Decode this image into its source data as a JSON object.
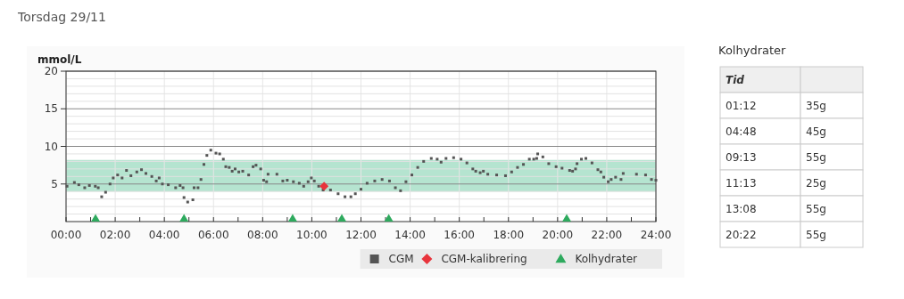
{
  "chart_data": [
    {
      "type": "scatter",
      "title": "Torsdag 29/11",
      "ylabel": "mmol/L",
      "xlim": [
        0,
        24
      ],
      "xticks": [
        {
          "value": 0,
          "label": "00:00"
        },
        {
          "value": 1,
          "label": null
        },
        {
          "value": 2,
          "label": "02:00"
        },
        {
          "value": 3,
          "label": null
        },
        {
          "value": 4,
          "label": "04:00"
        },
        {
          "value": 5,
          "label": null
        },
        {
          "value": 6,
          "label": "06:00"
        },
        {
          "value": 7,
          "label": null
        },
        {
          "value": 8,
          "label": "08:00"
        },
        {
          "value": 9,
          "label": null
        },
        {
          "value": 10,
          "label": "10:00"
        },
        {
          "value": 11,
          "label": null
        },
        {
          "value": 12,
          "label": "12:00"
        },
        {
          "value": 13,
          "label": null
        },
        {
          "value": 14,
          "label": "14:00"
        },
        {
          "value": 15,
          "label": null
        },
        {
          "value": 16,
          "label": "16:00"
        },
        {
          "value": 17,
          "label": null
        },
        {
          "value": 18,
          "label": "18:00"
        },
        {
          "value": 19,
          "label": null
        },
        {
          "value": 20,
          "label": "20:00"
        },
        {
          "value": 21,
          "label": null
        },
        {
          "value": 22,
          "label": "22:00"
        },
        {
          "value": 23,
          "label": null
        },
        {
          "value": 24,
          "label": "24:00"
        }
      ],
      "ylim": [
        0,
        20
      ],
      "yticks": [
        {
          "value": 1,
          "label": null
        },
        {
          "value": 2,
          "label": null
        },
        {
          "value": 3,
          "label": null
        },
        {
          "value": 4,
          "label": null
        },
        5,
        {
          "value": 6,
          "label": null
        },
        {
          "value": 7,
          "label": null
        },
        {
          "value": 8,
          "label": null
        },
        {
          "value": 9,
          "label": null
        },
        10,
        {
          "value": 11,
          "label": null
        },
        {
          "value": 12,
          "label": null
        },
        {
          "value": 13,
          "label": null
        },
        {
          "value": 14,
          "label": null
        },
        15,
        {
          "value": 16,
          "label": null
        },
        {
          "value": 17,
          "label": null
        },
        {
          "value": 18,
          "label": null
        },
        {
          "value": 19,
          "label": null
        },
        20
      ],
      "grid": true,
      "legend": "bottom right",
      "bands": [
        {
          "axis": "y",
          "from": 4,
          "to": 8.2,
          "color": "#b5e4d0"
        }
      ],
      "series": [
        {
          "name": "CGM",
          "color": "#555555",
          "marker": "square",
          "x": [
            0.04,
            0.34,
            0.52,
            0.76,
            0.95,
            1.19,
            1.31,
            1.45,
            1.61,
            1.79,
            1.92,
            2.1,
            2.28,
            2.46,
            2.64,
            2.88,
            3.07,
            3.25,
            3.49,
            3.67,
            3.79,
            3.92,
            4.16,
            4.46,
            4.64,
            4.76,
            4.8,
            4.95,
            5.16,
            5.21,
            5.37,
            5.49,
            5.61,
            5.73,
            5.89,
            6.1,
            6.25,
            6.4,
            6.5,
            6.64,
            6.76,
            6.88,
            7.03,
            7.19,
            7.43,
            7.61,
            7.73,
            7.92,
            8.04,
            8.16,
            8.22,
            8.58,
            8.82,
            9.0,
            9.25,
            9.49,
            9.67,
            9.85,
            9.98,
            10.1,
            10.28,
            10.46,
            10.76,
            11.07,
            11.35,
            11.59,
            11.77,
            12.0,
            12.25,
            12.56,
            12.86,
            13.16,
            13.4,
            13.61,
            13.83,
            14.07,
            14.31,
            14.55,
            14.86,
            15.1,
            15.26,
            15.46,
            15.77,
            16.07,
            16.31,
            16.55,
            16.67,
            16.85,
            16.98,
            17.16,
            17.52,
            17.88,
            18.13,
            18.37,
            18.61,
            18.85,
            19.03,
            19.15,
            19.19,
            19.4,
            19.64,
            19.94,
            20.18,
            20.49,
            20.61,
            20.73,
            20.79,
            20.97,
            21.15,
            21.4,
            21.64,
            21.76,
            21.88,
            22.06,
            22.18,
            22.36,
            22.58,
            22.67,
            23.21,
            23.58,
            23.82,
            24.0
          ],
          "values": [
            4.7,
            5.2,
            4.9,
            4.5,
            4.8,
            4.7,
            4.5,
            3.3,
            3.9,
            5.0,
            5.8,
            6.2,
            5.8,
            6.8,
            6.1,
            6.6,
            6.9,
            6.4,
            6.0,
            5.4,
            5.8,
            5.0,
            4.9,
            4.5,
            4.8,
            4.5,
            3.2,
            2.6,
            2.9,
            4.5,
            4.5,
            5.6,
            7.6,
            8.8,
            9.5,
            9.1,
            9.0,
            8.3,
            7.3,
            7.2,
            6.7,
            7.0,
            6.6,
            6.7,
            6.2,
            7.3,
            7.5,
            7.0,
            5.5,
            5.3,
            6.3,
            6.3,
            5.4,
            5.5,
            5.3,
            5.1,
            4.7,
            5.3,
            5.8,
            5.4,
            4.7,
            4.2,
            4.2,
            3.7,
            3.3,
            3.3,
            3.7,
            4.3,
            5.1,
            5.4,
            5.6,
            5.4,
            4.5,
            4.1,
            5.3,
            6.2,
            7.2,
            8.0,
            8.4,
            8.3,
            7.9,
            8.4,
            8.5,
            8.3,
            7.8,
            7.0,
            6.7,
            6.5,
            6.7,
            6.3,
            6.2,
            6.1,
            6.6,
            7.2,
            7.6,
            8.3,
            8.3,
            8.4,
            9.0,
            8.6,
            7.7,
            7.3,
            7.1,
            6.8,
            6.7,
            7.0,
            7.7,
            8.3,
            8.4,
            7.8,
            6.9,
            6.6,
            5.9,
            5.3,
            5.6,
            5.9,
            5.6,
            6.4,
            6.3,
            6.2,
            5.6,
            5.5
          ]
        },
        {
          "name": "CGM-kalibrering",
          "color": "#e8343c",
          "marker": "diamond",
          "x": [
            10.5
          ],
          "values": [
            4.7
          ]
        },
        {
          "name": "Kolhydrater",
          "color": "#2eaa5e",
          "marker": "triangle",
          "x": [
            1.2,
            4.8,
            9.22,
            11.22,
            13.13,
            20.37
          ],
          "values": [
            0.4,
            0.4,
            0.4,
            0.4,
            0.4,
            0.4
          ]
        }
      ]
    },
    {
      "type": "other",
      "title": "Kolhydrater",
      "annotations": [
        "Tid",
        "01:12",
        "35g",
        "04:48",
        "45g",
        "09:13",
        "55g",
        "11:13",
        "25g",
        "13:08",
        "55g",
        "20:22",
        "55g"
      ]
    }
  ]
}
